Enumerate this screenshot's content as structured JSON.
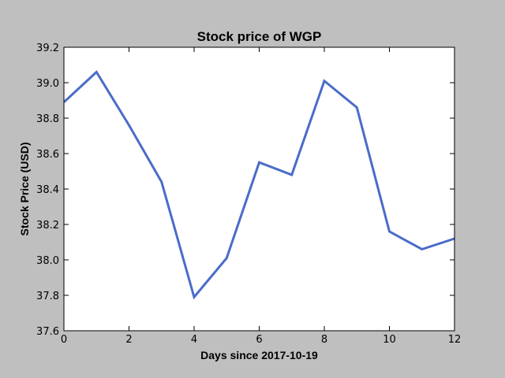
{
  "chart_data": {
    "type": "line",
    "title": "Stock price of WGP",
    "xlabel": "Days since 2017-10-19",
    "ylabel": "Stock Price (USD)",
    "xlim": [
      0,
      12
    ],
    "ylim": [
      37.6,
      39.2
    ],
    "x_ticks": [
      0,
      2,
      4,
      6,
      8,
      10,
      12
    ],
    "y_ticks": [
      37.6,
      37.8,
      38.0,
      38.2,
      38.4,
      38.6,
      38.8,
      39.0,
      39.2
    ],
    "grid": false,
    "series": [
      {
        "color": "#4a6cc9",
        "x": [
          0,
          1,
          2,
          3,
          4,
          5,
          6,
          7,
          8,
          9,
          10,
          11,
          12
        ],
        "y": [
          38.89,
          39.06,
          38.76,
          38.44,
          37.79,
          38.01,
          38.55,
          38.48,
          39.01,
          38.86,
          38.16,
          38.06,
          38.12
        ]
      }
    ]
  }
}
